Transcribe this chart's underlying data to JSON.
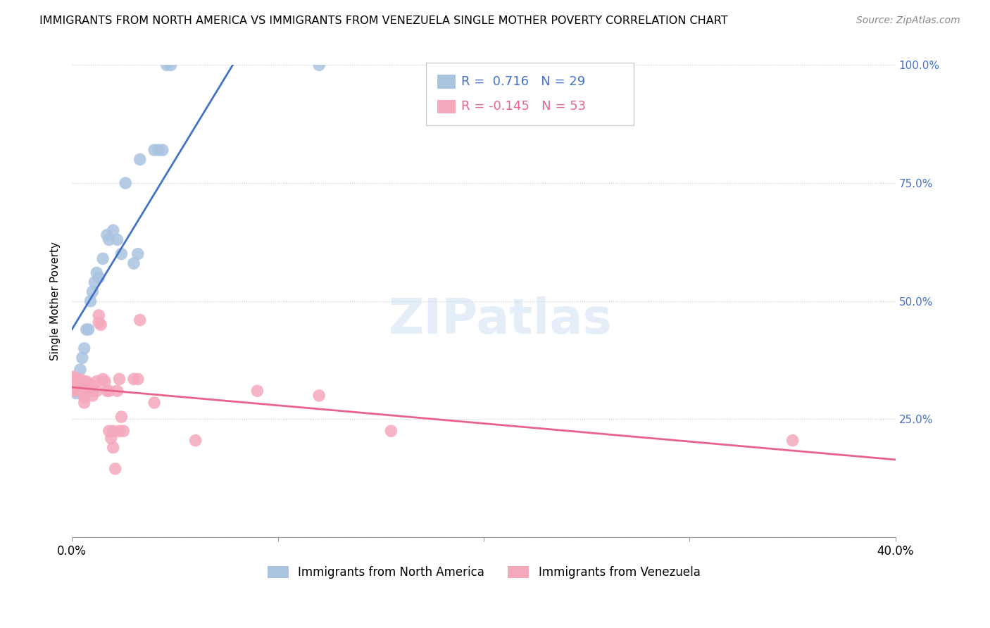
{
  "title": "IMMIGRANTS FROM NORTH AMERICA VS IMMIGRANTS FROM VENEZUELA SINGLE MOTHER POVERTY CORRELATION CHART",
  "source": "Source: ZipAtlas.com",
  "ylabel": "Single Mother Poverty",
  "xlim": [
    0,
    0.4
  ],
  "ylim": [
    0,
    1.0
  ],
  "legend_R_blue": "0.716",
  "legend_N_blue": "29",
  "legend_R_pink": "-0.145",
  "legend_N_pink": "53",
  "blue_color": "#aac4e0",
  "pink_color": "#f5a8bc",
  "blue_line_color": "#4472c4",
  "pink_line_color": "#e8638a",
  "blue_scatter": [
    [
      0.001,
      0.32
    ],
    [
      0.002,
      0.305
    ],
    [
      0.003,
      0.32
    ],
    [
      0.004,
      0.355
    ],
    [
      0.005,
      0.38
    ],
    [
      0.006,
      0.4
    ],
    [
      0.007,
      0.44
    ],
    [
      0.008,
      0.44
    ],
    [
      0.009,
      0.5
    ],
    [
      0.01,
      0.52
    ],
    [
      0.011,
      0.54
    ],
    [
      0.012,
      0.56
    ],
    [
      0.013,
      0.55
    ],
    [
      0.015,
      0.59
    ],
    [
      0.017,
      0.64
    ],
    [
      0.018,
      0.63
    ],
    [
      0.02,
      0.65
    ],
    [
      0.022,
      0.63
    ],
    [
      0.024,
      0.6
    ],
    [
      0.026,
      0.75
    ],
    [
      0.03,
      0.58
    ],
    [
      0.032,
      0.6
    ],
    [
      0.033,
      0.8
    ],
    [
      0.04,
      0.82
    ],
    [
      0.042,
      0.82
    ],
    [
      0.044,
      0.82
    ],
    [
      0.046,
      1.0
    ],
    [
      0.048,
      1.0
    ],
    [
      0.12,
      1.0
    ]
  ],
  "pink_scatter": [
    [
      0.0003,
      0.335
    ],
    [
      0.0005,
      0.33
    ],
    [
      0.0007,
      0.34
    ],
    [
      0.001,
      0.335
    ],
    [
      0.001,
      0.32
    ],
    [
      0.001,
      0.31
    ],
    [
      0.002,
      0.335
    ],
    [
      0.002,
      0.33
    ],
    [
      0.002,
      0.32
    ],
    [
      0.003,
      0.33
    ],
    [
      0.003,
      0.325
    ],
    [
      0.003,
      0.315
    ],
    [
      0.004,
      0.335
    ],
    [
      0.004,
      0.32
    ],
    [
      0.005,
      0.33
    ],
    [
      0.005,
      0.31
    ],
    [
      0.006,
      0.295
    ],
    [
      0.006,
      0.285
    ],
    [
      0.007,
      0.33
    ],
    [
      0.008,
      0.325
    ],
    [
      0.008,
      0.31
    ],
    [
      0.009,
      0.31
    ],
    [
      0.01,
      0.32
    ],
    [
      0.01,
      0.31
    ],
    [
      0.01,
      0.3
    ],
    [
      0.012,
      0.33
    ],
    [
      0.012,
      0.31
    ],
    [
      0.013,
      0.47
    ],
    [
      0.013,
      0.455
    ],
    [
      0.014,
      0.45
    ],
    [
      0.015,
      0.335
    ],
    [
      0.016,
      0.33
    ],
    [
      0.017,
      0.31
    ],
    [
      0.018,
      0.31
    ],
    [
      0.018,
      0.225
    ],
    [
      0.019,
      0.21
    ],
    [
      0.02,
      0.225
    ],
    [
      0.02,
      0.19
    ],
    [
      0.021,
      0.145
    ],
    [
      0.022,
      0.31
    ],
    [
      0.023,
      0.335
    ],
    [
      0.023,
      0.225
    ],
    [
      0.024,
      0.255
    ],
    [
      0.025,
      0.225
    ],
    [
      0.03,
      0.335
    ],
    [
      0.032,
      0.335
    ],
    [
      0.033,
      0.46
    ],
    [
      0.04,
      0.285
    ],
    [
      0.06,
      0.205
    ],
    [
      0.09,
      0.31
    ],
    [
      0.12,
      0.3
    ],
    [
      0.155,
      0.225
    ],
    [
      0.35,
      0.205
    ]
  ]
}
